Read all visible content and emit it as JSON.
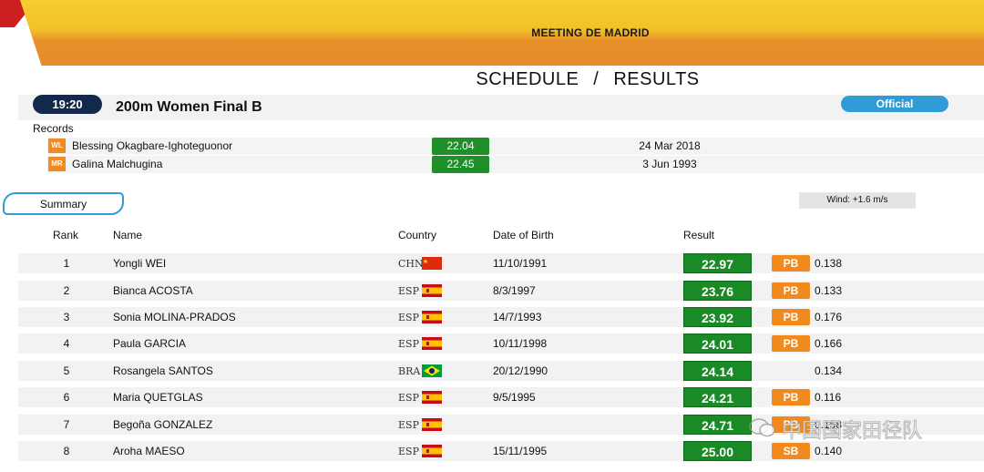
{
  "header": {
    "meeting_title": "MEETING DE MADRID",
    "nav_schedule": "SCHEDULE",
    "nav_separator": "/",
    "nav_results": "RESULTS",
    "brand_colors": {
      "red": "#cc1f1f",
      "gold": "#f2c12a",
      "orange": "#e48a2b"
    }
  },
  "event": {
    "time": "19:20",
    "title": "200m Women Final B",
    "status": "Official"
  },
  "records": {
    "label": "Records",
    "items": [
      {
        "badge": "WL",
        "name": "Blessing Okagbare-Ighoteguonor",
        "result": "22.04",
        "date": "24 Mar 2018"
      },
      {
        "badge": "MR",
        "name": "Galina Malchugina",
        "result": "22.45",
        "date": "3 Jun 1993"
      }
    ]
  },
  "summary_tab": "Summary",
  "wind": "Wind: +1.6 m/s",
  "table": {
    "headers": {
      "rank": "Rank",
      "name": "Name",
      "country": "Country",
      "dob": "Date of Birth",
      "result": "Result"
    },
    "rows": [
      {
        "rank": "1",
        "name": "Yongli WEI",
        "country": "CHN",
        "flag": "chn-flag-icon",
        "dob": "11/10/1991",
        "result": "22.97",
        "tag": "PB",
        "reaction": "0.138"
      },
      {
        "rank": "2",
        "name": "Bianca ACOSTA",
        "country": "ESP",
        "flag": "esp-flag-icon",
        "dob": "8/3/1997",
        "result": "23.76",
        "tag": "PB",
        "reaction": "0.133"
      },
      {
        "rank": "3",
        "name": "Sonia MOLINA-PRADOS",
        "country": "ESP",
        "flag": "esp-flag-icon",
        "dob": "14/7/1993",
        "result": "23.92",
        "tag": "PB",
        "reaction": "0.176"
      },
      {
        "rank": "4",
        "name": "Paula GARCIA",
        "country": "ESP",
        "flag": "esp-flag-icon",
        "dob": "10/11/1998",
        "result": "24.01",
        "tag": "PB",
        "reaction": "0.166"
      },
      {
        "rank": "5",
        "name": "Rosangela SANTOS",
        "country": "BRA",
        "flag": "bra-flag-icon",
        "dob": "20/12/1990",
        "result": "24.14",
        "tag": "",
        "reaction": "0.134"
      },
      {
        "rank": "6",
        "name": "Maria QUETGLAS",
        "country": "ESP",
        "flag": "esp-flag-icon",
        "dob": "9/5/1995",
        "result": "24.21",
        "tag": "PB",
        "reaction": "0.116"
      },
      {
        "rank": "7",
        "name": "Begoña GONZALEZ",
        "country": "ESP",
        "flag": "esp-flag-icon",
        "dob": "",
        "result": "24.71",
        "tag": "PB",
        "reaction": "0.158"
      },
      {
        "rank": "8",
        "name": "Aroha MAESO",
        "country": "ESP",
        "flag": "esp-flag-icon",
        "dob": "15/11/1995",
        "result": "25.00",
        "tag": "SB",
        "reaction": "0.140"
      }
    ]
  },
  "watermark": "中国国家田径队"
}
